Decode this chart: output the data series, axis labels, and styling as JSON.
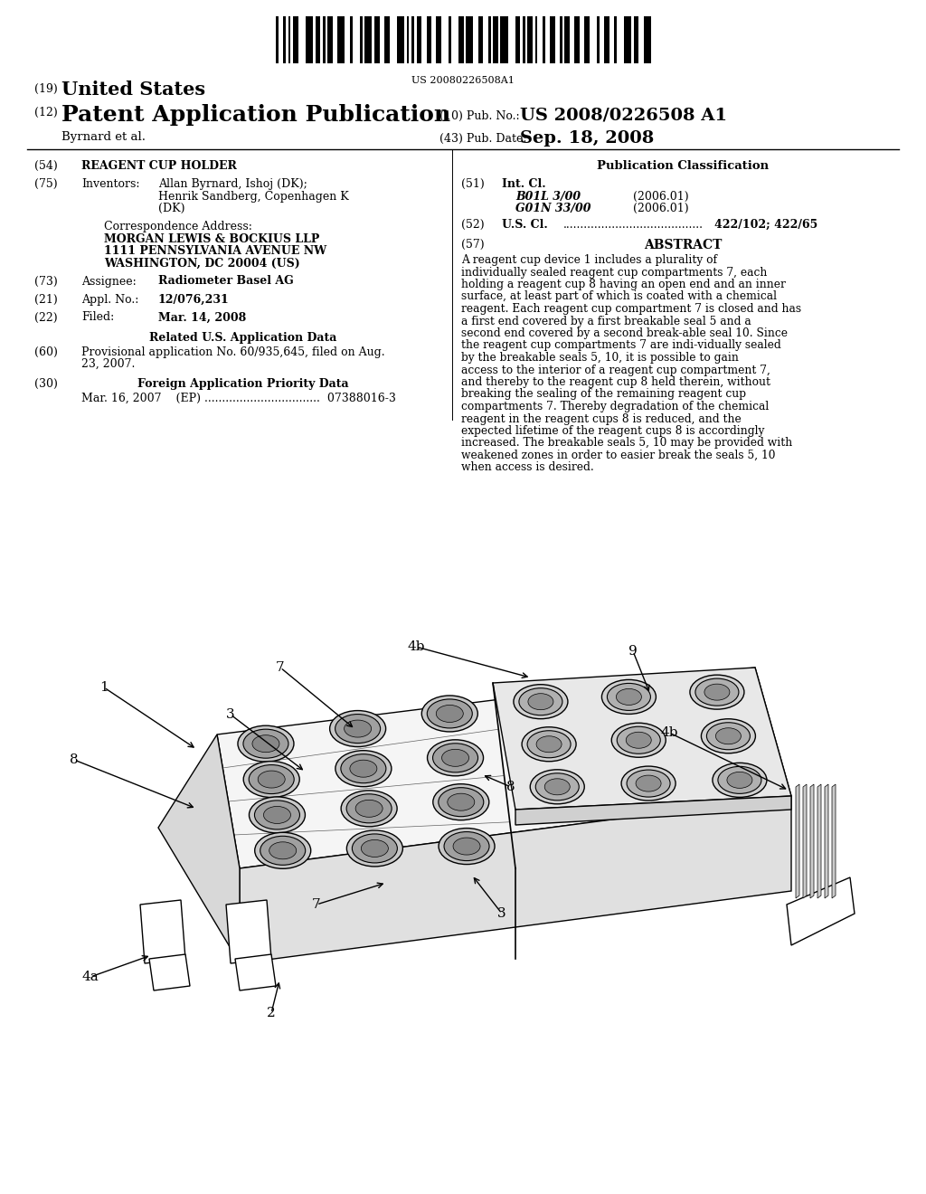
{
  "background_color": "#ffffff",
  "barcode_text": "US 20080226508A1",
  "header": {
    "line1_num": "(19)",
    "line1_text": "United States",
    "line2_num": "(12)",
    "line2_text": "Patent Application Publication",
    "line3_left": "Byrnard et al.",
    "right_col1_num": "(10)",
    "right_col1_label": "Pub. No.:",
    "right_col1_val": "US 2008/0226508 A1",
    "right_col2_num": "(43)",
    "right_col2_label": "Pub. Date:",
    "right_col2_val": "Sep. 18, 2008"
  },
  "left_col": {
    "title_num": "(54)",
    "title_text": "REAGENT CUP HOLDER",
    "inventors_num": "(75)",
    "inventors_label": "Inventors:",
    "inventors_line1": "Allan Byrnard, Ishoj (DK);",
    "inventors_line2": "Henrik Sandberg, Copenhagen K",
    "inventors_line3": "(DK)",
    "corr_label": "Correspondence Address:",
    "corr_line1": "MORGAN LEWIS & BOCKIUS LLP",
    "corr_line2": "1111 PENNSYLVANIA AVENUE NW",
    "corr_line3": "WASHINGTON, DC 20004 (US)",
    "assignee_num": "(73)",
    "assignee_label": "Assignee:",
    "assignee_text": "Radiometer Basel AG",
    "appl_num": "(21)",
    "appl_label": "Appl. No.:",
    "appl_text": "12/076,231",
    "filed_num": "(22)",
    "filed_label": "Filed:",
    "filed_text": "Mar. 14, 2008",
    "related_header": "Related U.S. Application Data",
    "related_num": "(60)",
    "related_line1": "Provisional application No. 60/935,645, filed on Aug.",
    "related_line2": "23, 2007.",
    "foreign_header": "Foreign Application Priority Data",
    "foreign_num": "(30)",
    "foreign_text": "Mar. 16, 2007    (EP) .................................  07388016-3"
  },
  "right_col": {
    "pub_class_header": "Publication Classification",
    "intcl_num": "(51)",
    "intcl_label": "Int. Cl.",
    "intcl_code1": "B01L 3/00",
    "intcl_date1": "(2006.01)",
    "intcl_code2": "G01N 33/00",
    "intcl_date2": "(2006.01)",
    "uscl_num": "(52)",
    "uscl_label": "U.S. Cl.",
    "uscl_dots": "........................................",
    "uscl_text": "422/102; 422/65",
    "abstract_num": "(57)",
    "abstract_header": "ABSTRACT",
    "abstract_text": "A reagent cup device 1 includes a plurality of individually sealed reagent cup compartments 7, each holding a reagent cup 8 having an open end and an inner surface, at least part of which is coated with a chemical reagent. Each reagent cup compartment 7 is closed and has a first end covered by a first breakable seal 5 and a second end covered by a second break-able seal 10. Since the reagent cup compartments 7 are indi-vidually sealed by the breakable seals 5, 10, it is possible to gain access to the interior of a reagent cup compartment 7, and thereby to the reagent cup 8 held therein, without breaking the sealing of the remaining reagent cup compartments 7. Thereby degradation of the chemical reagent in the reagent cups 8 is reduced, and the expected lifetime of the reagent cups 8 is accordingly increased. The breakable seals 5, 10 may be provided with weakened zones in order to easier break the seals 5, 10 when access is desired."
  }
}
